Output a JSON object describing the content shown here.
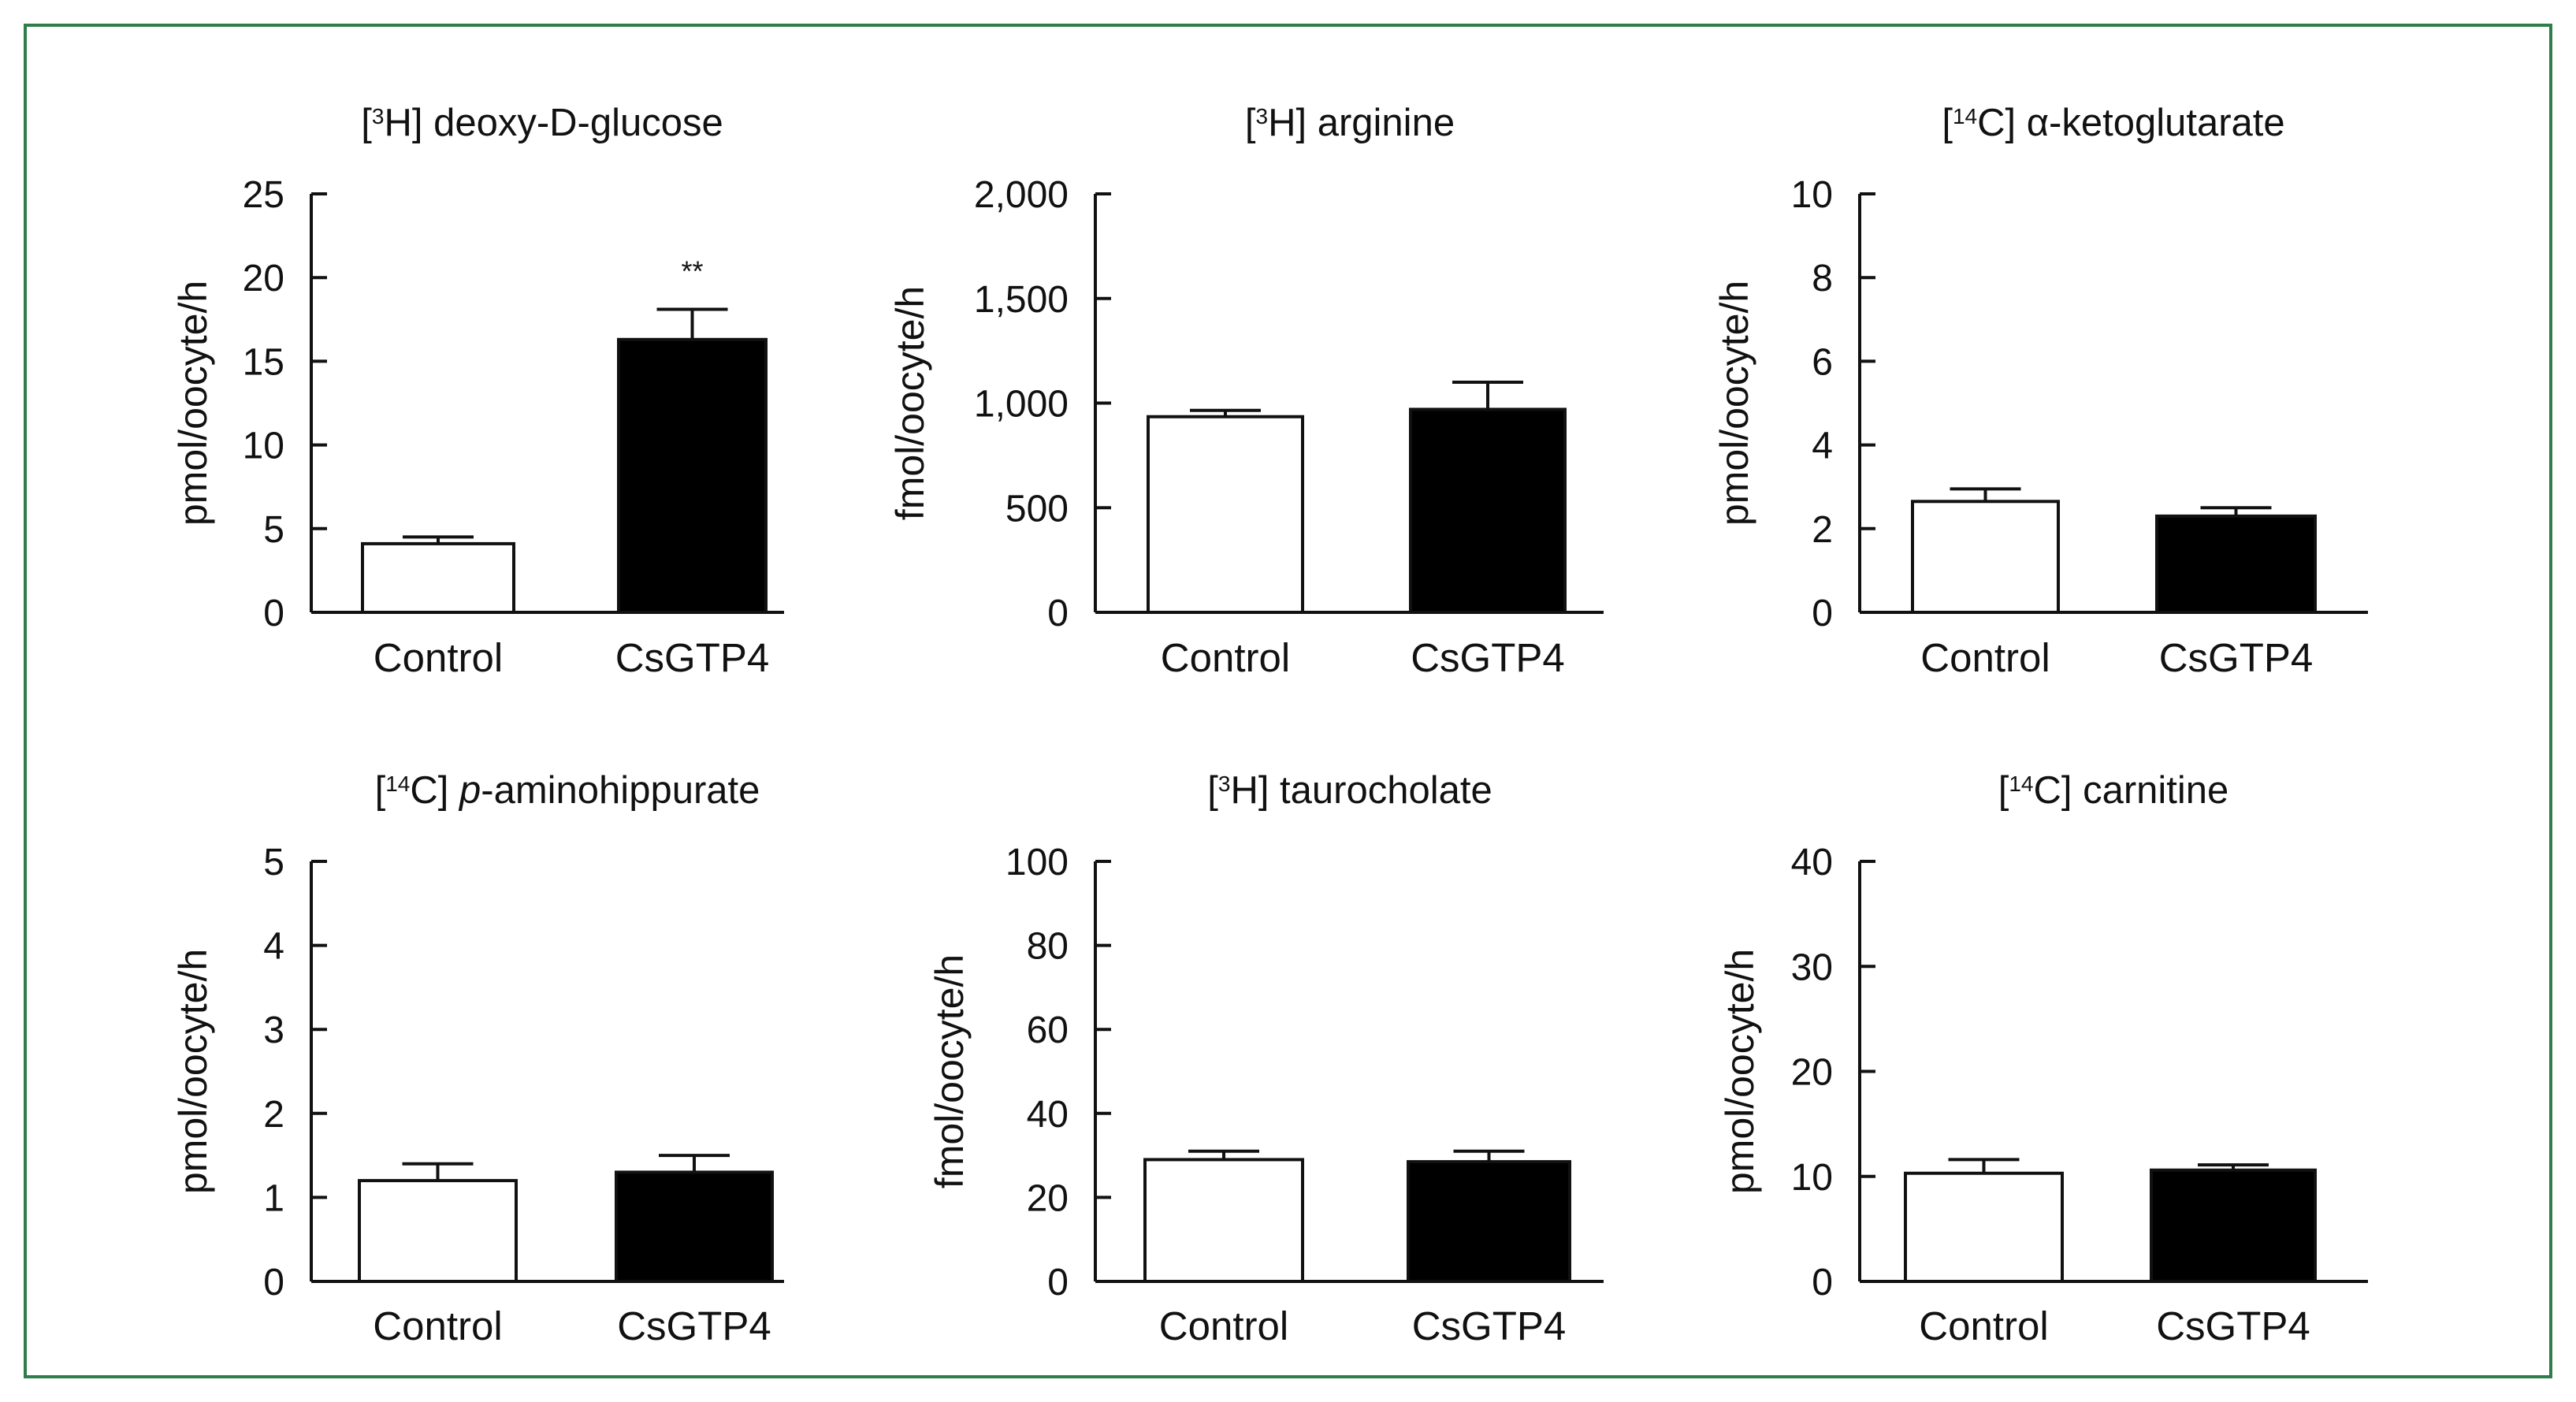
{
  "figure": {
    "frame_color": "#2e7d4a"
  },
  "chart_data": [
    {
      "type": "bar",
      "title_prefix": "[",
      "title_sup": "3",
      "title_isotope": "H]",
      "title_rest": " deoxy-D-glucose",
      "title_italic": "",
      "title_tail": "",
      "ylabel": "pmol/oocyte/h",
      "categories": [
        "Control",
        "CsGTP4"
      ],
      "values": [
        4.1,
        16.3
      ],
      "errors": [
        0.4,
        1.8
      ],
      "bar_colors": [
        "#ffffff",
        "#000000"
      ],
      "annotations": [
        "",
        "**"
      ],
      "ylim": [
        0,
        25
      ],
      "yticks": [
        0,
        5,
        10,
        15,
        20,
        25
      ],
      "yticklabels": [
        "0",
        "5",
        "10",
        "15",
        "20",
        "25"
      ]
    },
    {
      "type": "bar",
      "title_prefix": "[",
      "title_sup": "3",
      "title_isotope": "H]",
      "title_rest": " arginine",
      "title_italic": "",
      "title_tail": "",
      "ylabel": "fmol/oocyte/h",
      "categories": [
        "Control",
        "CsGTP4"
      ],
      "values": [
        935,
        970
      ],
      "errors": [
        30,
        130
      ],
      "bar_colors": [
        "#ffffff",
        "#000000"
      ],
      "annotations": [
        "",
        ""
      ],
      "ylim": [
        0,
        2000
      ],
      "yticks": [
        0,
        500,
        1000,
        1500,
        2000
      ],
      "yticklabels": [
        "0",
        "500",
        "1,000",
        "1,500",
        "2,000"
      ]
    },
    {
      "type": "bar",
      "title_prefix": "[",
      "title_sup": "14",
      "title_isotope": "C]",
      "title_rest": " α-ketoglutarate",
      "title_italic": "",
      "title_tail": "",
      "ylabel": "pmol/oocyte/h",
      "categories": [
        "Control",
        "CsGTP4"
      ],
      "values": [
        2.65,
        2.3
      ],
      "errors": [
        0.3,
        0.2
      ],
      "bar_colors": [
        "#ffffff",
        "#000000"
      ],
      "annotations": [
        "",
        ""
      ],
      "ylim": [
        0,
        10
      ],
      "yticks": [
        0,
        2,
        4,
        6,
        8,
        10
      ],
      "yticklabels": [
        "0",
        "2",
        "4",
        "6",
        "8",
        "10"
      ]
    },
    {
      "type": "bar",
      "title_prefix": "[",
      "title_sup": "14",
      "title_isotope": "C]",
      "title_rest": " ",
      "title_italic": "p",
      "title_tail": "-aminohippurate",
      "ylabel": "pmol/oocyte/h",
      "categories": [
        "Control",
        "CsGTP4"
      ],
      "values": [
        1.2,
        1.3
      ],
      "errors": [
        0.2,
        0.2
      ],
      "bar_colors": [
        "#ffffff",
        "#000000"
      ],
      "annotations": [
        "",
        ""
      ],
      "ylim": [
        0,
        5
      ],
      "yticks": [
        0,
        1,
        2,
        3,
        4,
        5
      ],
      "yticklabels": [
        "0",
        "1",
        "2",
        "3",
        "4",
        "5"
      ]
    },
    {
      "type": "bar",
      "title_prefix": "[",
      "title_sup": "3",
      "title_isotope": "H]",
      "title_rest": " taurocholate",
      "title_italic": "",
      "title_tail": "",
      "ylabel": "fmol/oocyte/h",
      "categories": [
        "Control",
        "CsGTP4"
      ],
      "values": [
        29,
        28.5
      ],
      "errors": [
        2,
        2.5
      ],
      "bar_colors": [
        "#ffffff",
        "#000000"
      ],
      "annotations": [
        "",
        ""
      ],
      "ylim": [
        0,
        100
      ],
      "yticks": [
        0,
        20,
        40,
        60,
        80,
        100
      ],
      "yticklabels": [
        "0",
        "20",
        "40",
        "60",
        "80",
        "100"
      ]
    },
    {
      "type": "bar",
      "title_prefix": "[",
      "title_sup": "14",
      "title_isotope": "C]",
      "title_rest": " carnitine",
      "title_italic": "",
      "title_tail": "",
      "ylabel": "pmol/oocyte/h",
      "categories": [
        "Control",
        "CsGTP4"
      ],
      "values": [
        10.3,
        10.6
      ],
      "errors": [
        1.3,
        0.5
      ],
      "bar_colors": [
        "#ffffff",
        "#000000"
      ],
      "annotations": [
        "",
        ""
      ],
      "ylim": [
        0,
        40
      ],
      "yticks": [
        0,
        10,
        20,
        30,
        40
      ],
      "yticklabels": [
        "0",
        "10",
        "20",
        "30",
        "40"
      ]
    }
  ]
}
